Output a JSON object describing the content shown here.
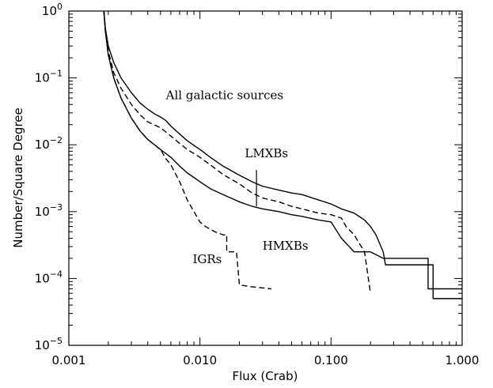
{
  "chart_data": {
    "type": "line",
    "title": "",
    "xlabel": "Flux (Crab)",
    "ylabel": "Number/Square Degree",
    "x_scale": "log",
    "y_scale": "log",
    "xlim": [
      0.001,
      1.0
    ],
    "ylim": [
      1e-05,
      1.0
    ],
    "grid": false,
    "x_ticks": [
      {
        "value": 0.001,
        "label": "0.001"
      },
      {
        "value": 0.01,
        "label": "0.010"
      },
      {
        "value": 0.1,
        "label": "0.100"
      },
      {
        "value": 1.0,
        "label": "1.000"
      }
    ],
    "y_ticks": [
      {
        "value": 1e-05,
        "base": "10",
        "exp": "−5"
      },
      {
        "value": 0.0001,
        "base": "10",
        "exp": "−4"
      },
      {
        "value": 0.001,
        "base": "10",
        "exp": "−3"
      },
      {
        "value": 0.01,
        "base": "10",
        "exp": "−2"
      },
      {
        "value": 0.1,
        "base": "10",
        "exp": "−1"
      },
      {
        "value": 1.0,
        "base": "10",
        "exp": "0"
      }
    ],
    "series": [
      {
        "name": "All galactic sources",
        "style": "solid",
        "points": [
          [
            0.00185,
            1.0
          ],
          [
            0.0019,
            0.55
          ],
          [
            0.002,
            0.3
          ],
          [
            0.0022,
            0.17
          ],
          [
            0.0025,
            0.1
          ],
          [
            0.003,
            0.06
          ],
          [
            0.0035,
            0.042
          ],
          [
            0.004,
            0.034
          ],
          [
            0.0045,
            0.029
          ],
          [
            0.005,
            0.026
          ],
          [
            0.0055,
            0.023
          ],
          [
            0.006,
            0.019
          ],
          [
            0.007,
            0.0145
          ],
          [
            0.008,
            0.0115
          ],
          [
            0.01,
            0.0085
          ],
          [
            0.012,
            0.0065
          ],
          [
            0.015,
            0.0048
          ],
          [
            0.02,
            0.0035
          ],
          [
            0.025,
            0.0028
          ],
          [
            0.03,
            0.0024
          ],
          [
            0.04,
            0.0021
          ],
          [
            0.05,
            0.0019
          ],
          [
            0.06,
            0.0018
          ],
          [
            0.08,
            0.0015
          ],
          [
            0.1,
            0.0013
          ],
          [
            0.12,
            0.0011
          ],
          [
            0.15,
            0.00095
          ],
          [
            0.18,
            0.00075
          ],
          [
            0.2,
            0.0006
          ],
          [
            0.22,
            0.00045
          ],
          [
            0.25,
            0.00025
          ],
          [
            0.26,
            0.00016
          ],
          [
            0.3,
            0.00016
          ],
          [
            0.6,
            0.00016
          ],
          [
            0.6,
            5e-05
          ],
          [
            1.0,
            5e-05
          ]
        ]
      },
      {
        "name": "LMXBs",
        "style": "dashed",
        "points": [
          [
            0.00185,
            1.0
          ],
          [
            0.0019,
            0.5
          ],
          [
            0.002,
            0.25
          ],
          [
            0.0022,
            0.12
          ],
          [
            0.0025,
            0.07
          ],
          [
            0.003,
            0.04
          ],
          [
            0.0035,
            0.028
          ],
          [
            0.004,
            0.022
          ],
          [
            0.005,
            0.018
          ],
          [
            0.006,
            0.0135
          ],
          [
            0.007,
            0.0105
          ],
          [
            0.008,
            0.0085
          ],
          [
            0.01,
            0.0065
          ],
          [
            0.012,
            0.005
          ],
          [
            0.015,
            0.0036
          ],
          [
            0.02,
            0.0026
          ],
          [
            0.025,
            0.0019
          ],
          [
            0.03,
            0.0016
          ],
          [
            0.04,
            0.0014
          ],
          [
            0.05,
            0.0012
          ],
          [
            0.06,
            0.0011
          ],
          [
            0.08,
            0.00095
          ],
          [
            0.1,
            0.0009
          ],
          [
            0.12,
            0.0008
          ],
          [
            0.13,
            0.0006
          ],
          [
            0.15,
            0.00045
          ],
          [
            0.18,
            0.00025
          ],
          [
            0.19,
            0.00012
          ],
          [
            0.2,
            6e-05
          ]
        ]
      },
      {
        "name": "HMXBs",
        "style": "solid",
        "points": [
          [
            0.00185,
            1.0
          ],
          [
            0.0019,
            0.5
          ],
          [
            0.002,
            0.22
          ],
          [
            0.0022,
            0.1
          ],
          [
            0.0025,
            0.05
          ],
          [
            0.003,
            0.025
          ],
          [
            0.0035,
            0.016
          ],
          [
            0.004,
            0.012
          ],
          [
            0.005,
            0.0085
          ],
          [
            0.006,
            0.0065
          ],
          [
            0.007,
            0.0048
          ],
          [
            0.008,
            0.0038
          ],
          [
            0.01,
            0.0028
          ],
          [
            0.012,
            0.0022
          ],
          [
            0.015,
            0.0018
          ],
          [
            0.02,
            0.0014
          ],
          [
            0.025,
            0.0012
          ],
          [
            0.03,
            0.0011
          ],
          [
            0.04,
            0.001
          ],
          [
            0.05,
            0.0009
          ],
          [
            0.06,
            0.00085
          ],
          [
            0.08,
            0.00075
          ],
          [
            0.1,
            0.0007
          ],
          [
            0.12,
            0.0004
          ],
          [
            0.15,
            0.00025
          ],
          [
            0.2,
            0.00025
          ],
          [
            0.25,
            0.0002
          ],
          [
            0.3,
            0.0002
          ],
          [
            0.5,
            0.0002
          ],
          [
            0.55,
            0.0002
          ],
          [
            0.55,
            7e-05
          ],
          [
            1.0,
            7e-05
          ]
        ]
      },
      {
        "name": "IGRs",
        "style": "dashed",
        "points": [
          [
            0.00185,
            1.0
          ],
          [
            0.0019,
            0.5
          ],
          [
            0.002,
            0.22
          ],
          [
            0.0022,
            0.1
          ],
          [
            0.0025,
            0.05
          ],
          [
            0.003,
            0.025
          ],
          [
            0.0035,
            0.016
          ],
          [
            0.004,
            0.012
          ],
          [
            0.005,
            0.0085
          ],
          [
            0.0055,
            0.0062
          ],
          [
            0.006,
            0.005
          ],
          [
            0.007,
            0.0028
          ],
          [
            0.008,
            0.0015
          ],
          [
            0.009,
            0.001
          ],
          [
            0.01,
            0.0007
          ],
          [
            0.011,
            0.0006
          ],
          [
            0.013,
            0.0005
          ],
          [
            0.015,
            0.00045
          ],
          [
            0.016,
            0.00045
          ],
          [
            0.016,
            0.00025
          ],
          [
            0.019,
            0.00025
          ],
          [
            0.02,
            8e-05
          ],
          [
            0.025,
            7.5e-05
          ],
          [
            0.035,
            7e-05
          ]
        ]
      }
    ],
    "annotations": [
      {
        "text": "All galactic sources",
        "x": 0.0055,
        "y": 0.048
      },
      {
        "text": "LMXBs",
        "x": 0.022,
        "y": 0.0065
      },
      {
        "text": "HMXBs",
        "x": 0.03,
        "y": 0.00027
      },
      {
        "text": "IGRs",
        "x": 0.0088,
        "y": 0.00017
      }
    ],
    "pointer": {
      "from": [
        0.027,
        0.0042
      ],
      "to": [
        0.027,
        0.0012
      ]
    }
  }
}
